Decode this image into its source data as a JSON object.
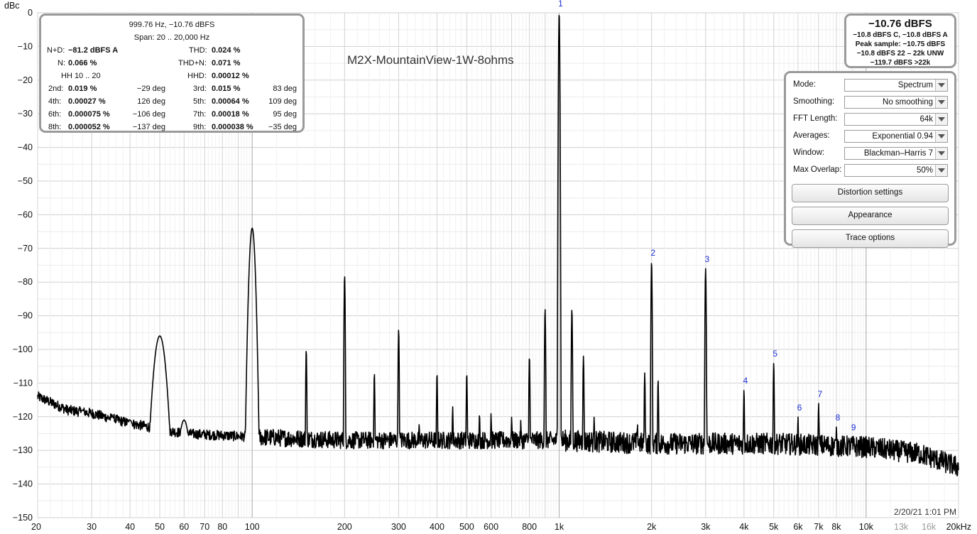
{
  "chart_data": {
    "type": "line",
    "title": "M2X-MountainView-1W-8ohms",
    "ylabel": "dBc",
    "xlabel": "",
    "x_scale": "log",
    "xlim": [
      20,
      20000
    ],
    "ylim": [
      -150,
      0
    ],
    "y_ticks": [
      "0",
      "-10",
      "-20",
      "-30",
      "-40",
      "-50",
      "-60",
      "-70",
      "-80",
      "-90",
      "-100",
      "-110",
      "-120",
      "-130",
      "-140",
      "-150"
    ],
    "x_tick_labels": [
      {
        "f": 20,
        "text": "20"
      },
      {
        "f": 30,
        "text": "30"
      },
      {
        "f": 40,
        "text": "40"
      },
      {
        "f": 50,
        "text": "50"
      },
      {
        "f": 60,
        "text": "60"
      },
      {
        "f": 70,
        "text": "70"
      },
      {
        "f": 80,
        "text": "80"
      },
      {
        "f": 100,
        "text": "100"
      },
      {
        "f": 200,
        "text": "200"
      },
      {
        "f": 300,
        "text": "300"
      },
      {
        "f": 400,
        "text": "400"
      },
      {
        "f": 500,
        "text": "500"
      },
      {
        "f": 600,
        "text": "600"
      },
      {
        "f": 800,
        "text": "800"
      },
      {
        "f": 1000,
        "text": "1k"
      },
      {
        "f": 2000,
        "text": "2k"
      },
      {
        "f": 3000,
        "text": "3k"
      },
      {
        "f": 4000,
        "text": "4k"
      },
      {
        "f": 5000,
        "text": "5k"
      },
      {
        "f": 6000,
        "text": "6k"
      },
      {
        "f": 7000,
        "text": "7k"
      },
      {
        "f": 8000,
        "text": "8k"
      },
      {
        "f": 10000,
        "text": "10k"
      },
      {
        "f": 13000,
        "text": "13k",
        "grey": true
      },
      {
        "f": 16000,
        "text": "16k",
        "grey": true
      },
      {
        "f": 20000,
        "text": "20kHz"
      }
    ],
    "grid": true,
    "series": [
      {
        "color": "#000000",
        "noise_floor": [
          [
            20,
            -114
          ],
          [
            25,
            -118
          ],
          [
            30,
            -119
          ],
          [
            40,
            -122
          ],
          [
            60,
            -125
          ],
          [
            100,
            -126
          ],
          [
            200,
            -127
          ],
          [
            500,
            -127
          ],
          [
            1000,
            -127
          ],
          [
            2000,
            -128
          ],
          [
            5000,
            -128
          ],
          [
            10000,
            -129
          ],
          [
            15000,
            -131
          ],
          [
            20000,
            -135
          ]
        ],
        "peaks": [
          {
            "f": 28,
            "db": -118
          },
          {
            "f": 35,
            "db": -120
          },
          {
            "f": 40,
            "db": -121
          },
          {
            "f": 50,
            "db": -96
          },
          {
            "f": 60,
            "db": -121
          },
          {
            "f": 100,
            "db": -64
          },
          {
            "f": 150,
            "db": -100
          },
          {
            "f": 200,
            "db": -78
          },
          {
            "f": 250,
            "db": -107
          },
          {
            "f": 300,
            "db": -94
          },
          {
            "f": 350,
            "db": -122
          },
          {
            "f": 400,
            "db": -107
          },
          {
            "f": 450,
            "db": -117
          },
          {
            "f": 500,
            "db": -107
          },
          {
            "f": 550,
            "db": -119
          },
          {
            "f": 600,
            "db": -119
          },
          {
            "f": 700,
            "db": -120
          },
          {
            "f": 750,
            "db": -121
          },
          {
            "f": 800,
            "db": -102
          },
          {
            "f": 900,
            "db": -88
          },
          {
            "f": 1000,
            "db": 0
          },
          {
            "f": 1100,
            "db": -88
          },
          {
            "f": 1200,
            "db": -102
          },
          {
            "f": 1300,
            "db": -120
          },
          {
            "f": 1800,
            "db": -122
          },
          {
            "f": 1900,
            "db": -107
          },
          {
            "f": 2000,
            "db": -74
          },
          {
            "f": 2100,
            "db": -109
          },
          {
            "f": 3000,
            "db": -76
          },
          {
            "f": 4000,
            "db": -112
          },
          {
            "f": 5000,
            "db": -104
          },
          {
            "f": 6000,
            "db": -120
          },
          {
            "f": 7000,
            "db": -116
          },
          {
            "f": 8000,
            "db": -123
          },
          {
            "f": 9000,
            "db": -126
          }
        ]
      }
    ],
    "harmonic_markers": [
      {
        "label": "1",
        "f": 1000,
        "db": 0
      },
      {
        "label": "2",
        "f": 2000,
        "db": -74
      },
      {
        "label": "3",
        "f": 3000,
        "db": -76
      },
      {
        "label": "4",
        "f": 4000,
        "db": -112
      },
      {
        "label": "5",
        "f": 5000,
        "db": -104
      },
      {
        "label": "6",
        "f": 6000,
        "db": -120
      },
      {
        "label": "7",
        "f": 7000,
        "db": -116
      },
      {
        "label": "8",
        "f": 8000,
        "db": -123
      },
      {
        "label": "9",
        "f": 9000,
        "db": -126
      }
    ],
    "timestamp": "2/20/21 1:01 PM"
  },
  "stats": {
    "header": "999.76 Hz, −10.76 dBFS",
    "span": "Span: 20 .. 20,000 Hz",
    "nd_label": "N+D:",
    "nd_value": "−81.2 dBFS A",
    "thd_label": "THD:",
    "thd_value": "0.024 %",
    "n_label": "N:",
    "n_value": "0.066 %",
    "thdn_label": "THD+N:",
    "thdn_value": "0.071 %",
    "hh_label": "HH 10 .. 20",
    "hhd_label": "HHD:",
    "hhd_value": "0.00012 %",
    "harmonics": [
      {
        "label": "2nd:",
        "value": "0.019 %",
        "phase": "−29 deg"
      },
      {
        "label": "3rd:",
        "value": "0.015 %",
        "phase": "83 deg"
      },
      {
        "label": "4th:",
        "value": "0.00027 %",
        "phase": "126 deg"
      },
      {
        "label": "5th:",
        "value": "0.00064 %",
        "phase": "109 deg"
      },
      {
        "label": "6th:",
        "value": "0.000075 %",
        "phase": "−106 deg"
      },
      {
        "label": "7th:",
        "value": "0.00018 %",
        "phase": "95 deg"
      },
      {
        "label": "8th:",
        "value": "0.000052 %",
        "phase": "−137 deg"
      },
      {
        "label": "9th:",
        "value": "0.000038 %",
        "phase": "−35 deg"
      }
    ]
  },
  "level": {
    "main": "−10.76 dBFS",
    "line1": "−10.8 dBFS C, −10.8 dBFS A",
    "line2": "Peak sample: −10.75 dBFS",
    "line3": "−10.8 dBFS 22 – 22k UNW",
    "line4": "−119.7 dBFS >22k"
  },
  "settings": {
    "mode_label": "Mode:",
    "mode_value": "Spectrum",
    "smoothing_label": "Smoothing:",
    "smoothing_value": "No  smoothing",
    "fft_label": "FFT Length:",
    "fft_value": "64k",
    "averages_label": "Averages:",
    "averages_value": "Exponential 0.94",
    "window_label": "Window:",
    "window_value": "Blackman–Harris 7",
    "overlap_label": "Max Overlap:",
    "overlap_value": "50%",
    "distortion_button": "Distortion settings",
    "appearance_button": "Appearance",
    "trace_button": "Trace options"
  }
}
